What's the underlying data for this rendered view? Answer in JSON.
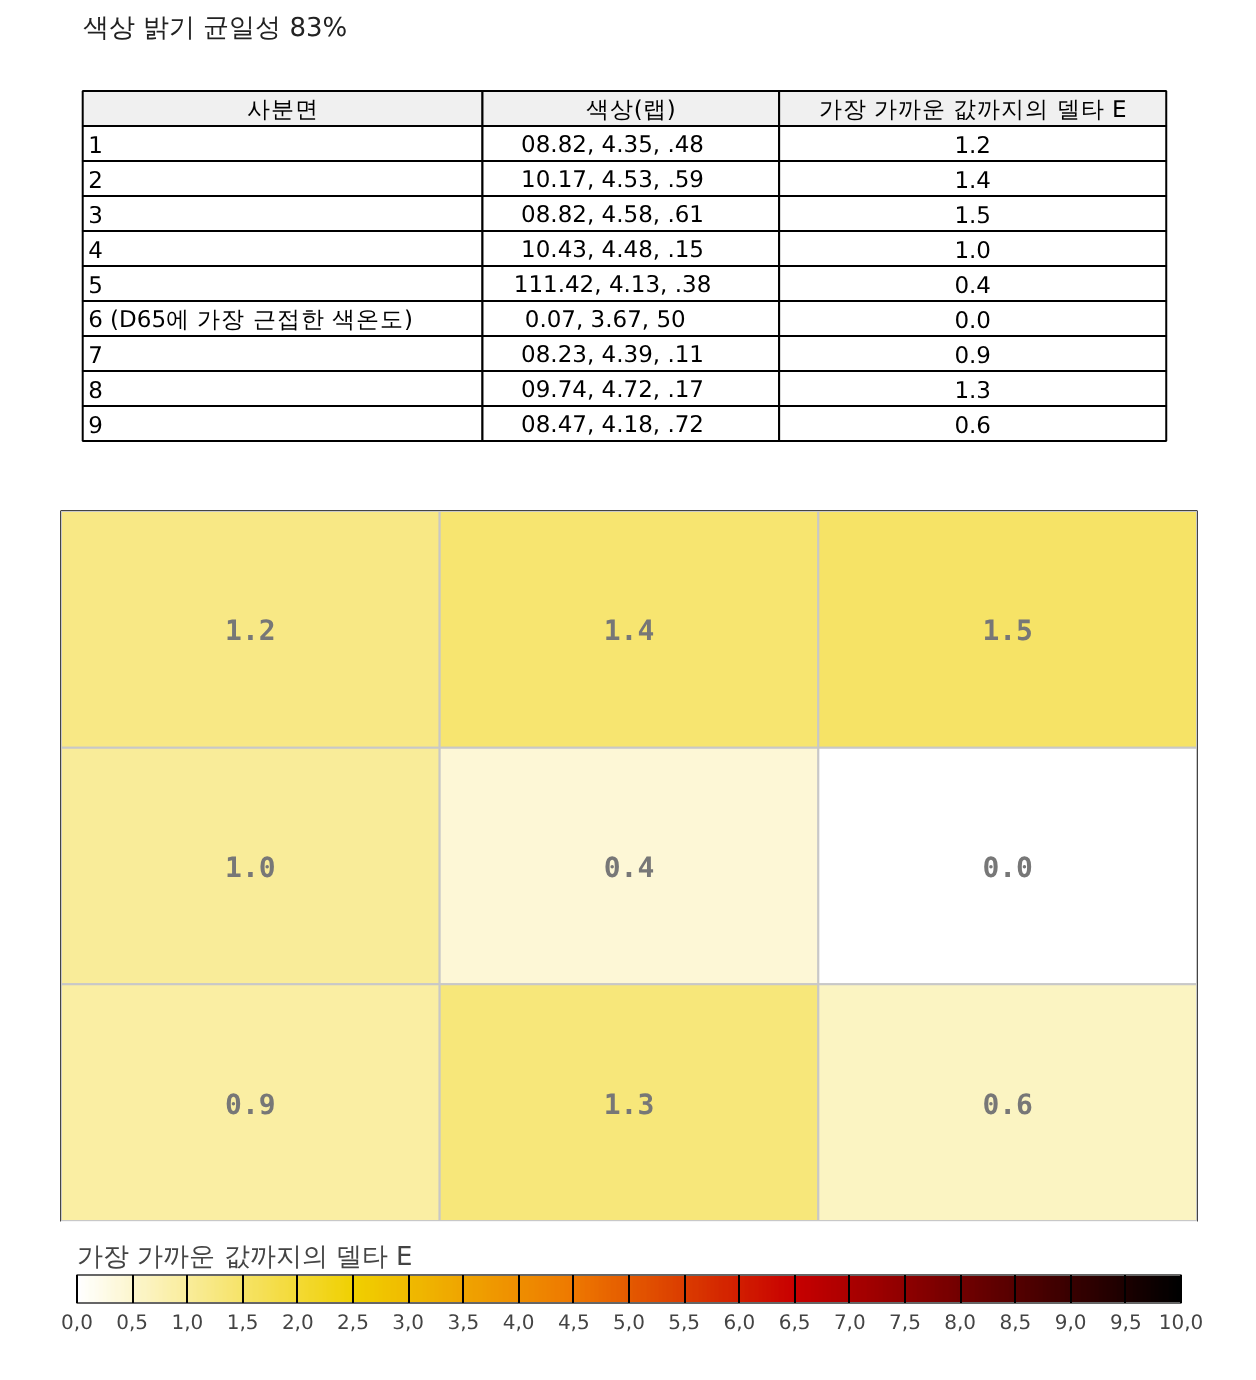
{
  "chart_data": [
    {
      "type": "other",
      "title": "색상 밝기 균일성 83%",
      "categories": [
        "사분면",
        "색상(랩)",
        "가장 가까운 값까지의 델타 E"
      ],
      "cell_labels": [
        [
          "1",
          "08.82,   4.35,    .48",
          "1.2"
        ],
        [
          "2",
          "10.17,   4.53,    .59",
          "1.4"
        ],
        [
          "3",
          "08.82,   4.58,    .61",
          "1.5"
        ],
        [
          "4",
          "10.43,   4.48,    .15",
          "1.0"
        ],
        [
          "5",
          "111.42,   4.13,    .38",
          "0.4"
        ],
        [
          "6 (D65에 가장 근접한 색온도)",
          "0.07,   3.67,      50",
          "0.0"
        ],
        [
          "7",
          "08.23,   4.39,    .11",
          "0.9"
        ],
        [
          "8",
          "09.74,   4.72,    .17",
          "1.3"
        ],
        [
          "9",
          "08.47,   4.18,    .72",
          "0.6"
        ]
      ]
    },
    {
      "type": "heatmap",
      "categories": [
        null,
        null,
        null
      ],
      "y_categories": [
        null,
        null,
        null
      ],
      "cells": [
        [
          1.2,
          1.4,
          1.5
        ],
        [
          1.0,
          0.4,
          0.0
        ],
        [
          0.9,
          1.3,
          0.6
        ]
      ],
      "cell_labels": [
        [
          "1.2",
          "1.4",
          "1.5"
        ],
        [
          "1.0",
          "0.4",
          "0.0"
        ],
        [
          "0.9",
          "1.3",
          "0.6"
        ]
      ],
      "tick_labels": false,
      "clabel": "가장 가까운 값까지의 델타 E",
      "clim": [
        0,
        10
      ],
      "cticks": [
        {
          "value": 0,
          "label": "0,0"
        },
        {
          "value": 0.5,
          "label": "0,5"
        },
        {
          "value": 1,
          "label": "1,0"
        },
        {
          "value": 1.5,
          "label": "1,5"
        },
        {
          "value": 2,
          "label": "2,0"
        },
        {
          "value": 2.5,
          "label": "2,5"
        },
        {
          "value": 3,
          "label": "3,0"
        },
        {
          "value": 3.5,
          "label": "3,5"
        },
        {
          "value": 4,
          "label": "4,0"
        },
        {
          "value": 4.5,
          "label": "4,5"
        },
        {
          "value": 5,
          "label": "5,0"
        },
        {
          "value": 5.5,
          "label": "5,5"
        },
        {
          "value": 6,
          "label": "6,0"
        },
        {
          "value": 6.5,
          "label": "6,5"
        },
        {
          "value": 7,
          "label": "7,0"
        },
        {
          "value": 7.5,
          "label": "7,5"
        },
        {
          "value": 8,
          "label": "8,0"
        },
        {
          "value": 8.5,
          "label": "8,5"
        },
        {
          "value": 9,
          "label": "9,0"
        },
        {
          "value": 9.5,
          "label": "9,5"
        },
        {
          "value": 10,
          "label": "10,0"
        }
      ]
    }
  ]
}
